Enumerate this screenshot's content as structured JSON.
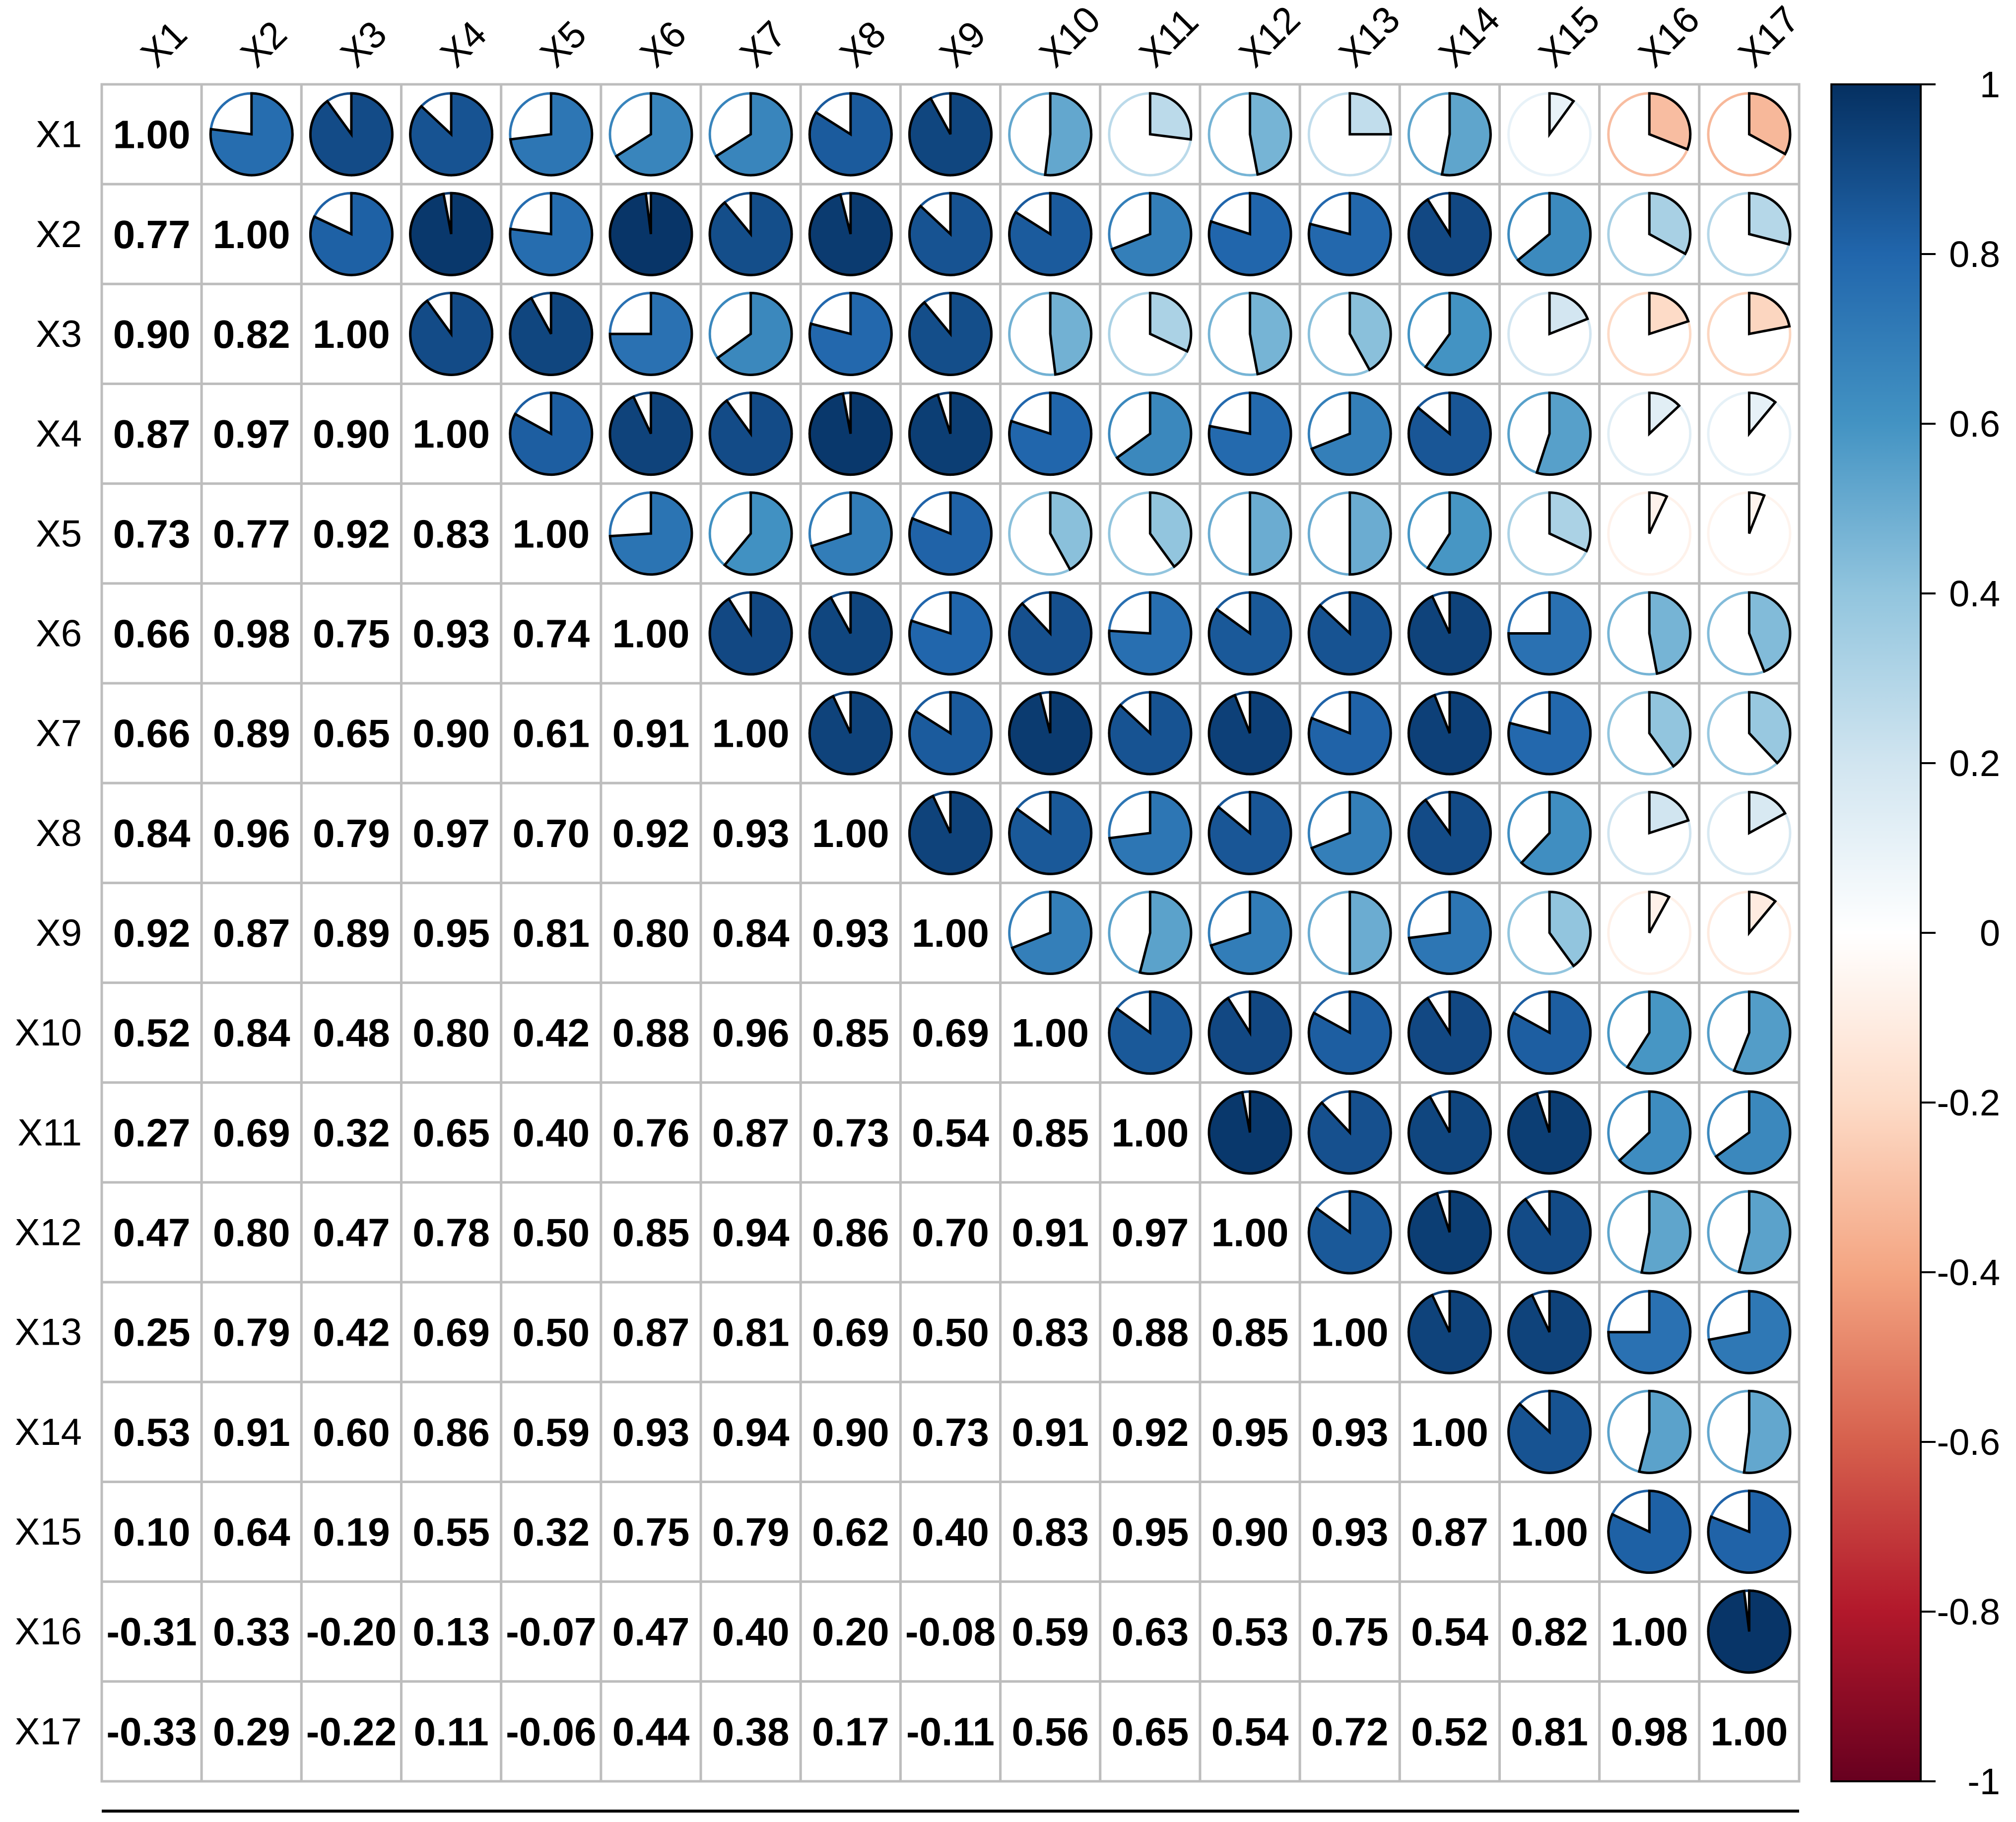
{
  "chart_data": {
    "type": "heatmap",
    "style": "correlation matrix: lower triangle numbers, upper triangle pie glyphs (filled clockwise from 12 o'clock by |r|)",
    "variables": [
      "X1",
      "X2",
      "X3",
      "X4",
      "X5",
      "X6",
      "X7",
      "X8",
      "X9",
      "X10",
      "X11",
      "X12",
      "X13",
      "X14",
      "X15",
      "X16",
      "X17"
    ],
    "lower_labels": [
      [],
      [
        "0.77"
      ],
      [
        "0.90",
        "0.82"
      ],
      [
        "0.87",
        "0.97",
        "0.90"
      ],
      [
        "0.73",
        "0.77",
        "0.92",
        "0.83"
      ],
      [
        "0.66",
        "0.98",
        "0.75",
        "0.93",
        "0.74"
      ],
      [
        "0.66",
        "0.89",
        "0.65",
        "0.90",
        "0.61",
        "0.91"
      ],
      [
        "0.84",
        "0.96",
        "0.79",
        "0.97",
        "0.70",
        "0.92",
        "0.93"
      ],
      [
        "0.92",
        "0.87",
        "0.89",
        "0.95",
        "0.81",
        "0.80",
        "0.84",
        "0.93"
      ],
      [
        "0.52",
        "0.84",
        "0.48",
        "0.80",
        "0.42",
        "0.88",
        "0.96",
        "0.85",
        "0.69"
      ],
      [
        "0.27",
        "0.69",
        "0.32",
        "0.65",
        "0.40",
        "0.76",
        "0.87",
        "0.73",
        "0.54",
        "0.85"
      ],
      [
        "0.47",
        "0.80",
        "0.47",
        "0.78",
        "0.50",
        "0.85",
        "0.94",
        "0.86",
        "0.70",
        "0.91",
        "0.97"
      ],
      [
        "0.25",
        "0.79",
        "0.42",
        "0.69",
        "0.50",
        "0.87",
        "0.81",
        "0.69",
        "0.50",
        "0.83",
        "0.88",
        "0.85"
      ],
      [
        "0.53",
        "0.91",
        "0.60",
        "0.86",
        "0.59",
        "0.93",
        "0.94",
        "0.90",
        "0.73",
        "0.91",
        "0.92",
        "0.95",
        "0.93"
      ],
      [
        "0.10",
        "0.64",
        "0.19",
        "0.55",
        "0.32",
        "0.75",
        "0.79",
        "0.62",
        "0.40",
        "0.83",
        "0.95",
        "0.90",
        "0.93",
        "0.87"
      ],
      [
        "-0.31",
        "0.33",
        "-0.20",
        "0.13",
        "-0.07",
        "0.47",
        "0.40",
        "0.20",
        "-0.08",
        "0.59",
        "0.63",
        "0.53",
        "0.75",
        "0.54",
        "0.82"
      ],
      [
        "-0.33",
        "0.29",
        "-0.22",
        "0.11",
        "-0.06",
        "0.44",
        "0.38",
        "0.17",
        "-0.11",
        "0.56",
        "0.65",
        "0.54",
        "0.72",
        "0.52",
        "0.81",
        "0.98"
      ]
    ],
    "diagonal_label": "1.00",
    "colorbar": {
      "range": [
        -1,
        1
      ],
      "ticks": [
        "1",
        "0.8",
        "0.6",
        "0.4",
        "0.2",
        "0",
        "-0.2",
        "-0.4",
        "-0.6",
        "-0.8",
        "-1"
      ],
      "colors": [
        "#67001F",
        "#B2182B",
        "#D6604D",
        "#F4A582",
        "#FDDBC7",
        "#FFFFFF",
        "#D1E5F0",
        "#92C5DE",
        "#4393C3",
        "#2166AC",
        "#053061"
      ]
    },
    "grid": true,
    "legend": "right"
  }
}
